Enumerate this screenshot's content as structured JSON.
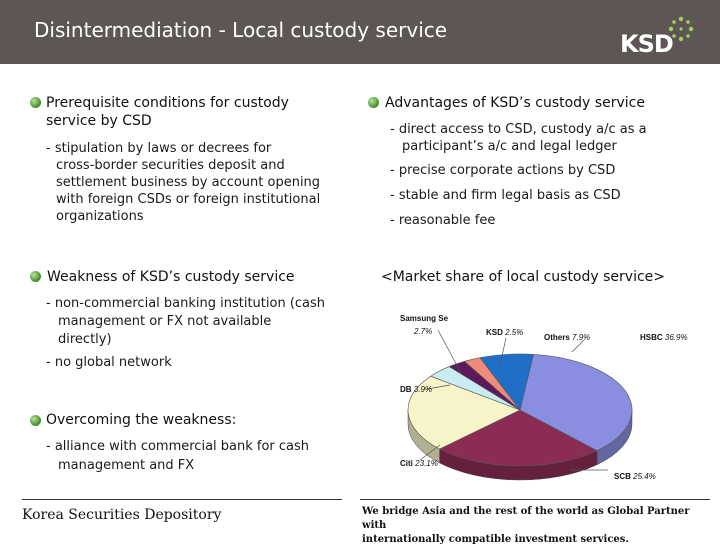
{
  "header": {
    "title": "Disintermediation - Local custody service",
    "logo_text": "KSD"
  },
  "prerequisite": {
    "heading_line1": "Prerequisite conditions for custody",
    "heading_line2": "service by CSD",
    "lines": [
      "- stipulation by laws or decrees for",
      "cross-border securities deposit and",
      "settlement business by account opening",
      "with foreign CSDs or foreign institutional",
      "organizations"
    ]
  },
  "advantages": {
    "heading": "Advantages of KSD’s custody service",
    "items": [
      "- direct access to CSD, custody a/c as a",
      "participant’s a/c and legal ledger",
      "- precise corporate actions by CSD",
      "- stable and firm legal basis as CSD",
      "- reasonable fee"
    ]
  },
  "weakness": {
    "heading": "Weakness of KSD’s custody service",
    "lines": [
      "- non-commercial banking institution (cash",
      "management or FX not available",
      "directly)",
      "- no global network"
    ]
  },
  "overcoming": {
    "heading": "Overcoming the weakness:",
    "lines": [
      "- alliance with commercial bank for cash",
      "management and FX"
    ]
  },
  "chart_title": "<Market share of local custody service>",
  "chart_data": {
    "type": "pie",
    "title": "<Market share of local custody service>",
    "slices": [
      {
        "label": "HSBC",
        "value_text": "36.9%",
        "value": 36.9,
        "color": "#8a8ee0"
      },
      {
        "label": "SCB",
        "value_text": "25.4%",
        "value": 25.4,
        "color": "#8b2c55"
      },
      {
        "label": "Citi",
        "value_text": "23.1%",
        "value": 23.1,
        "color": "#f6f4c8"
      },
      {
        "label": "DB",
        "value_text": "3.9%",
        "value": 3.9,
        "color": "#c8ecf2"
      },
      {
        "label": "Samsung Se",
        "value_text": "2.7%",
        "value": 2.7,
        "color": "#5c1a5a"
      },
      {
        "label": "KSD",
        "value_text": "2.5%",
        "value": 2.5,
        "color": "#ee8c7a"
      },
      {
        "label": "Others",
        "value_text": "7.9%",
        "value": 7.9,
        "color": "#1f6fc6"
      }
    ]
  },
  "footer": {
    "left": "Korea Securities Depository",
    "right_line1": "We bridge Asia and the rest of the world as Global Partner with",
    "right_line2": "internationally compatible investment services."
  }
}
